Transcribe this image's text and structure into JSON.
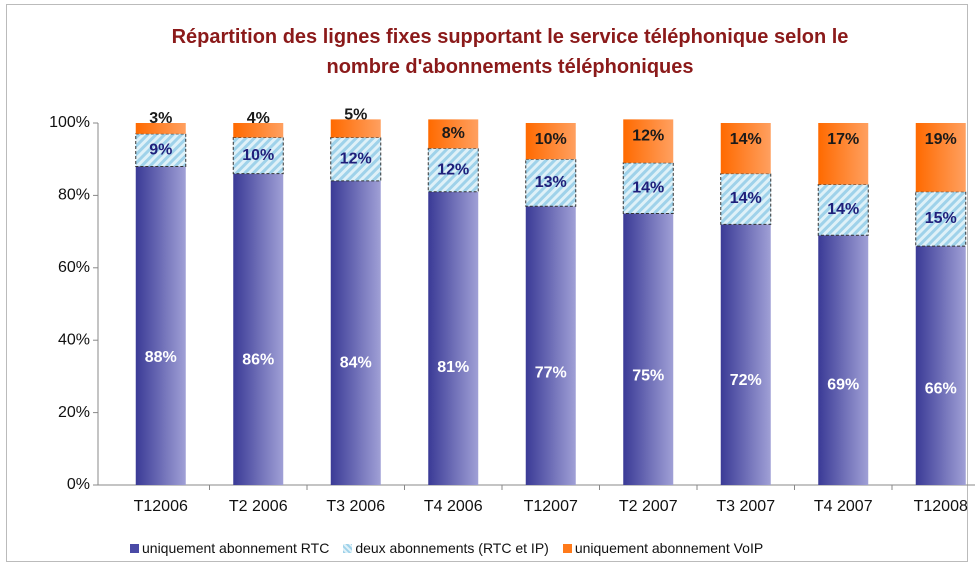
{
  "chart_data": {
    "type": "stacked_bar",
    "title": "Répartition des lignes fixes supportant le service téléphonique selon le nombre d'abonnements téléphoniques",
    "categories": [
      "T12006",
      "T2 2006",
      "T3 2006",
      "T4 2006",
      "T12007",
      "T2 2007",
      "T3 2007",
      "T4 2007",
      "T12008"
    ],
    "series": [
      {
        "name": "uniquement abonnement RTC",
        "color": "#4a4aa6",
        "values": [
          88,
          86,
          84,
          81,
          77,
          75,
          72,
          69,
          66
        ],
        "value_labels": [
          "88%",
          "86%",
          "84%",
          "81%",
          "77%",
          "75%",
          "72%",
          "69%",
          "66%"
        ]
      },
      {
        "name": "deux abonnements (RTC et IP)",
        "color": "#bfe3f2",
        "values": [
          9,
          10,
          12,
          12,
          13,
          14,
          14,
          14,
          15
        ],
        "value_labels": [
          "9%",
          "10%",
          "12%",
          "12%",
          "13%",
          "14%",
          "14%",
          "14%",
          "15%"
        ]
      },
      {
        "name": "uniquement abonnement VoIP",
        "color": "#ff7a1a",
        "values": [
          3,
          4,
          5,
          8,
          10,
          12,
          14,
          17,
          19
        ],
        "value_labels": [
          "3%",
          "4%",
          "5%",
          "8%",
          "10%",
          "12%",
          "14%",
          "17%",
          "19%"
        ]
      }
    ],
    "ylim": [
      0,
      100
    ],
    "yticks": [
      {
        "value": 0,
        "label": "0%"
      },
      {
        "value": 20,
        "label": "20%"
      },
      {
        "value": 40,
        "label": "40%"
      },
      {
        "value": 60,
        "label": "60%"
      },
      {
        "value": 80,
        "label": "80%"
      },
      {
        "value": 100,
        "label": "100%"
      }
    ],
    "legend": "bottom"
  }
}
